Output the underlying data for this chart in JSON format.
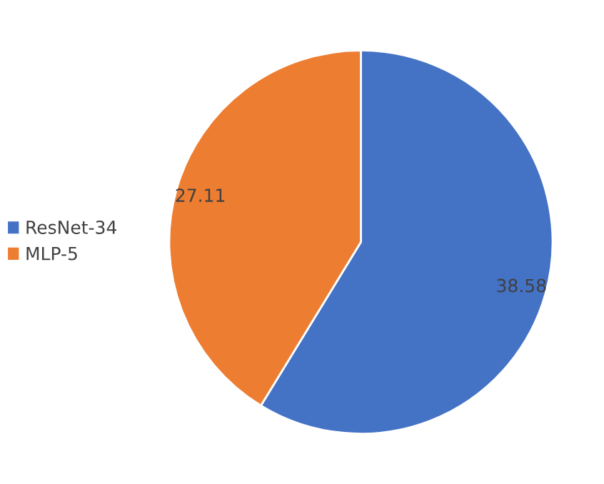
{
  "chart_data": {
    "type": "pie",
    "categories": [
      "ResNet-34",
      "MLP-5"
    ],
    "values": [
      38.58,
      27.11
    ],
    "colors": [
      "#4472c4",
      "#ed7d31"
    ],
    "data_labels": true,
    "legend": "left"
  }
}
